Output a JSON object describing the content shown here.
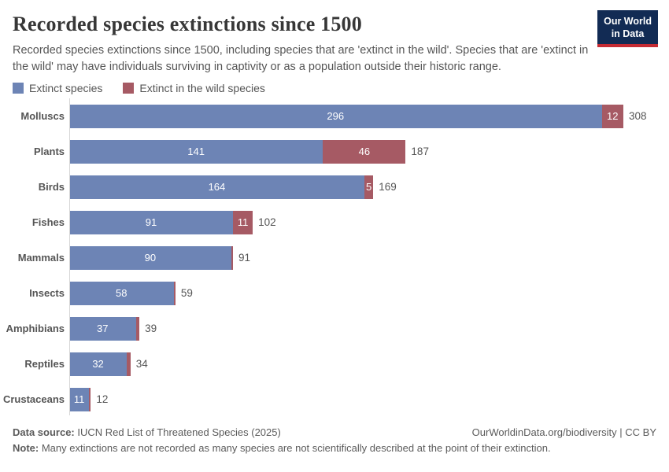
{
  "header": {
    "title": "Recorded species extinctions since 1500",
    "subtitle": "Recorded species extinctions since 1500, including species that are 'extinct in the wild'. Species that are 'extinct in the wild' may have individuals surviving in captivity or as a population outside their historic range.",
    "logo": {
      "line1": "Our World",
      "line2": "in Data",
      "bg_color": "#122b54",
      "stripe_color": "#c52b33"
    }
  },
  "legend": [
    {
      "label": "Extinct species",
      "color": "#6d84b5"
    },
    {
      "label": "Extinct in the wild species",
      "color": "#a65a64"
    }
  ],
  "chart_data": {
    "type": "bar",
    "orientation": "horizontal",
    "stacked": true,
    "grid": false,
    "categories": [
      "Molluscs",
      "Plants",
      "Birds",
      "Fishes",
      "Mammals",
      "Insects",
      "Amphibians",
      "Reptiles",
      "Crustaceans"
    ],
    "series": [
      {
        "name": "Extinct species",
        "color": "#6d84b5",
        "values": [
          296,
          141,
          164,
          91,
          90,
          58,
          37,
          32,
          11
        ]
      },
      {
        "name": "Extinct in the wild species",
        "color": "#a65a64",
        "values": [
          12,
          46,
          5,
          11,
          1,
          1,
          2,
          2,
          1
        ]
      }
    ],
    "totals": [
      308,
      187,
      169,
      102,
      91,
      59,
      39,
      34,
      12
    ],
    "xmax": 308,
    "value_labels": "inside-white, totals outside gray"
  },
  "footer": {
    "source_label": "Data source:",
    "source_text": " IUCN Red List of Threatened Species (2025)",
    "link": "OurWorldinData.org/biodiversity | CC BY",
    "note_label": "Note:",
    "note_text": " Many extinctions are not recorded as many species are not scientifically described at the point of their extinction."
  }
}
